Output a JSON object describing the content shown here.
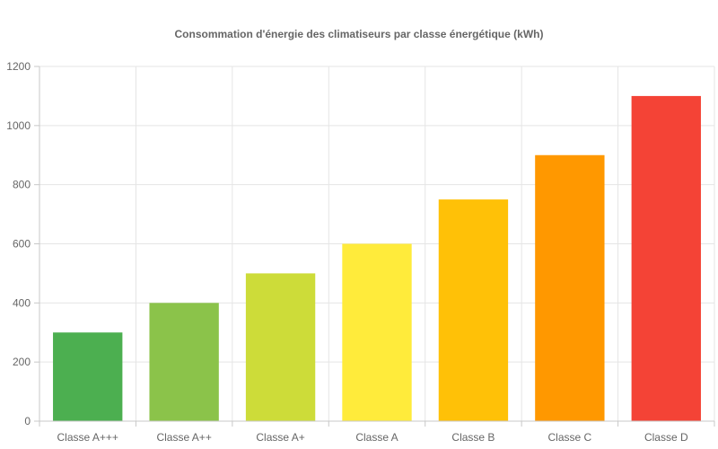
{
  "chart_data": {
    "type": "bar",
    "title": "Consommation d'énergie des climatiseurs par classe énergétique (kWh)",
    "categories": [
      "Classe A+++",
      "Classe A++",
      "Classe A+",
      "Classe A",
      "Classe B",
      "Classe C",
      "Classe D"
    ],
    "values": [
      300,
      400,
      500,
      600,
      750,
      900,
      1100
    ],
    "colors": [
      "#4caf50",
      "#8bc34a",
      "#cddc39",
      "#ffeb3b",
      "#ffc107",
      "#ff9800",
      "#f44336"
    ],
    "ylim": [
      0,
      1200
    ],
    "yticks": [
      0,
      200,
      400,
      600,
      800,
      1000,
      1200
    ],
    "grid": true,
    "legend": "none"
  }
}
